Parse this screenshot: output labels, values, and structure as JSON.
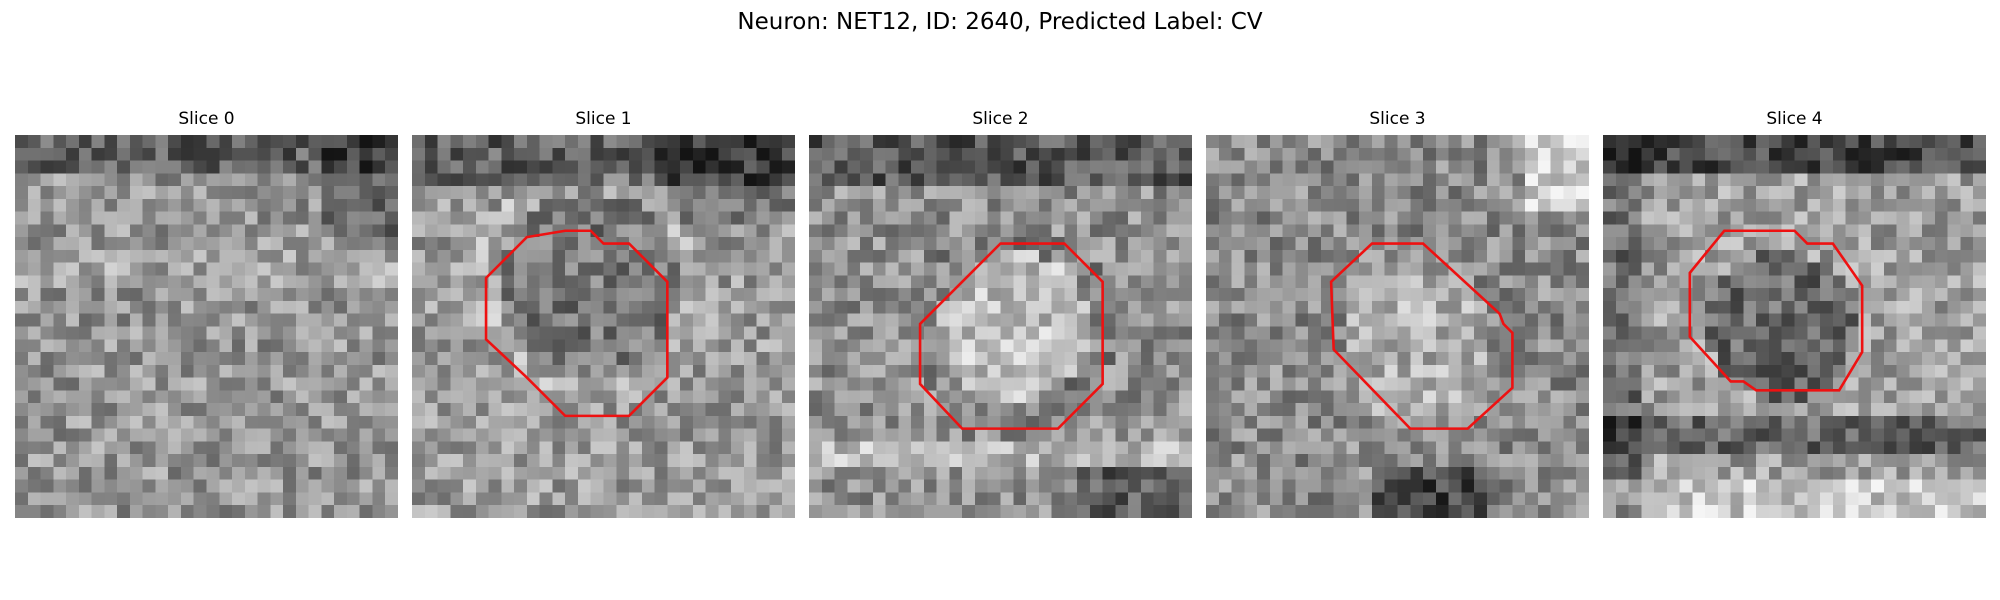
{
  "figure": {
    "title": "Neuron: NET12, ID: 2640, Predicted Label: CV"
  },
  "panels": [
    {
      "title": "Slice 0",
      "image": "grayscale-em-patch",
      "roi": false
    },
    {
      "title": "Slice 1",
      "image": "grayscale-em-patch",
      "roi": true
    },
    {
      "title": "Slice 2",
      "image": "grayscale-em-patch",
      "roi": true
    },
    {
      "title": "Slice 3",
      "image": "grayscale-em-patch",
      "roi": true
    },
    {
      "title": "Slice 4",
      "image": "grayscale-em-patch",
      "roi": true
    }
  ],
  "roi_color": "#ee1111"
}
